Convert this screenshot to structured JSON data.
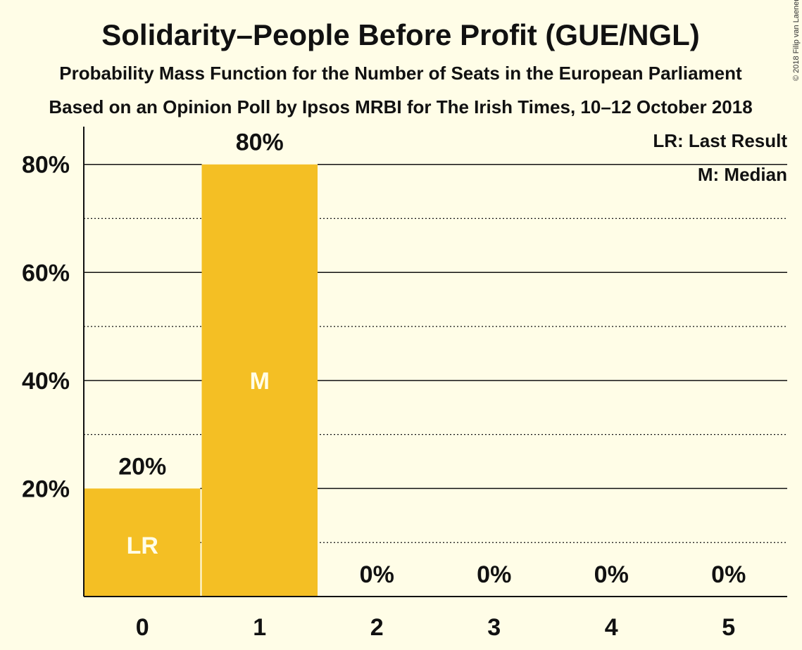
{
  "chart_data": {
    "type": "bar",
    "title": "Solidarity–People Before Profit (GUE/NGL)",
    "subtitle": "Probability Mass Function for the Number of Seats in the European Parliament",
    "subtitle2": "Based on an Opinion Poll by Ipsos MRBI for The Irish Times, 10–12 October 2018",
    "categories": [
      "0",
      "1",
      "2",
      "3",
      "4",
      "5"
    ],
    "values": [
      20,
      80,
      0,
      0,
      0,
      0
    ],
    "value_labels": [
      "20%",
      "80%",
      "0%",
      "0%",
      "0%",
      "0%"
    ],
    "bar_markers": [
      "LR",
      "M",
      "",
      "",
      "",
      ""
    ],
    "yticks": [
      20,
      40,
      60,
      80
    ],
    "ytick_labels": [
      "20%",
      "40%",
      "60%",
      "80%"
    ],
    "ylim": [
      0,
      87
    ],
    "minor_gridlines": [
      10,
      30,
      50,
      70
    ],
    "legend": [
      "LR: Last Result",
      "M: Median"
    ],
    "legend_position": "top-right",
    "bar_color": "#f4bf24",
    "background_color": "#fffde7",
    "copyright": "© 2018 Filip van Laenen"
  }
}
